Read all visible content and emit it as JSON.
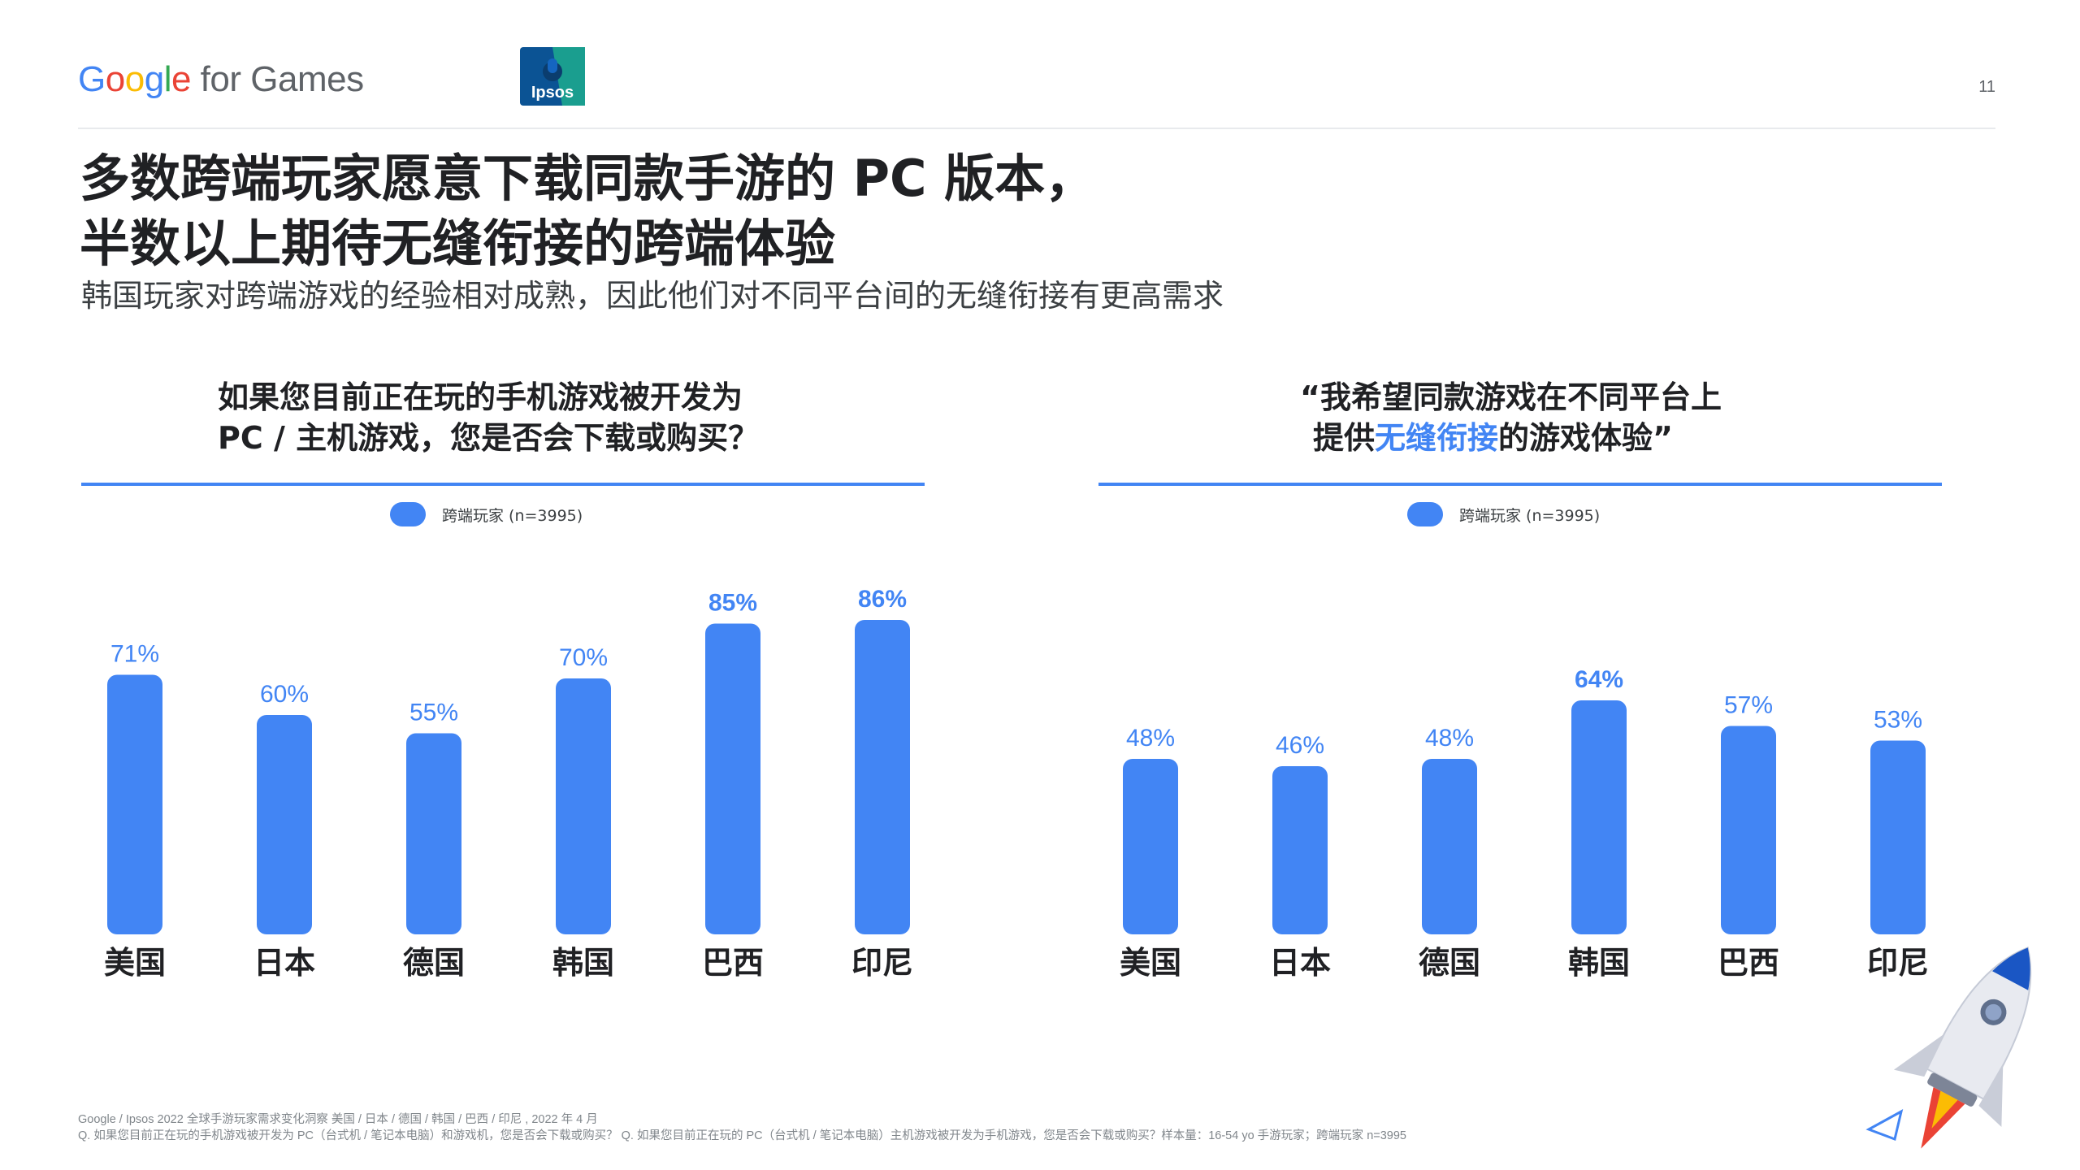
{
  "header": {
    "logo_google": "Google",
    "logo_suffix": " for Games",
    "logo_ipsos": "Ipsos",
    "page_number": "11"
  },
  "title": {
    "line1": "多数跨端玩家愿意下载同款手游的 PC 版本，",
    "line2": "半数以上期待无缝衔接的跨端体验"
  },
  "subtitle": "韩国玩家对跨端游戏的经验相对成熟，因此他们对不同平台间的无缝衔接有更高需求",
  "panels": {
    "left": {
      "question_line1": "如果您目前正在玩的手机游戏被开发为",
      "question_line2": "PC / 主机游戏，您是否会下载或购买？"
    },
    "right": {
      "question_line1": "“我希望同款游戏在不同平台上",
      "question_line2_pre": "提供",
      "question_line2_highlight": "无缝衔接",
      "question_line2_post": "的游戏体验”"
    }
  },
  "legend": {
    "label": "跨端玩家 (n=3995)"
  },
  "colors": {
    "bar": "#4285f4",
    "highlight_label": "#4285f4",
    "normal_label": "#4285f4",
    "rule": "#4285f4"
  },
  "chart_data": [
    {
      "type": "bar",
      "title": "",
      "series": [
        {
          "name": "跨端玩家 (n=3995)",
          "values": [
            71,
            60,
            55,
            70,
            85,
            86
          ]
        }
      ],
      "categories": [
        "美国",
        "日本",
        "德国",
        "韩国",
        "巴西",
        "印尼"
      ],
      "value_labels": [
        "71%",
        "60%",
        "55%",
        "70%",
        "85%",
        "86%"
      ],
      "bold_labels": [
        false,
        false,
        false,
        false,
        true,
        true
      ],
      "ylim": [
        0,
        100
      ],
      "xlabel": "",
      "ylabel": "",
      "grid": false,
      "legend_position": "top"
    },
    {
      "type": "bar",
      "title": "",
      "series": [
        {
          "name": "跨端玩家 (n=3995)",
          "values": [
            48,
            46,
            48,
            64,
            57,
            53
          ]
        }
      ],
      "categories": [
        "美国",
        "日本",
        "德国",
        "韩国",
        "巴西",
        "印尼"
      ],
      "value_labels": [
        "48%",
        "46%",
        "48%",
        "64%",
        "57%",
        "53%"
      ],
      "bold_labels": [
        false,
        false,
        false,
        true,
        false,
        false
      ],
      "ylim": [
        0,
        100
      ],
      "xlabel": "",
      "ylabel": "",
      "grid": false,
      "legend_position": "top"
    }
  ],
  "footnote": {
    "line1": "Google / Ipsos 2022 全球手游玩家需求变化洞察 美国 / 日本 / 德国 / 韩国 / 巴西 / 印尼 , 2022 年 4 月",
    "line2": "Q. 如果您目前正在玩的手机游戏被开发为 PC（台式机 / 笔记本电脑）和游戏机，您是否会下载或购买？ Q. 如果您目前正在玩的 PC（台式机 / 笔记本电脑）主机游戏被开发为手机游戏，您是否会下载或购买？样本量：16-54 yo 手游玩家；跨端玩家 n=3995"
  }
}
